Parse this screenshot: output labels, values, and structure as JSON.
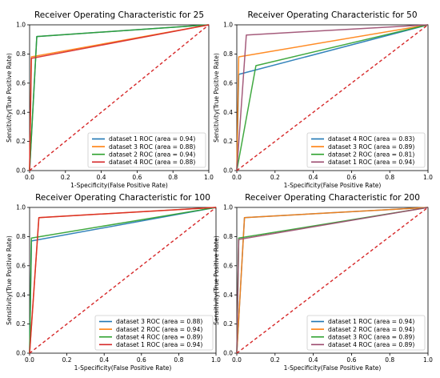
{
  "chart_data": [
    {
      "type": "line",
      "title": "Receiver Operating Characteristic for 25",
      "xlabel": "1-Specificity(False Positive Rate)",
      "ylabel": "Sensitivity(True Positive Rate)",
      "xlim": [
        0,
        1
      ],
      "ylim": [
        0,
        1
      ],
      "xticks": [
        "0.0",
        "0.2",
        "0.4",
        "0.6",
        "0.8",
        "1.0"
      ],
      "yticks": [
        "0.0",
        "0.2",
        "0.4",
        "0.6",
        "0.8",
        "1.0"
      ],
      "legend_position": "lower-right",
      "grid": false,
      "series": [
        {
          "name": "dataset 1 ROC (area = 0.94)",
          "color": "#1f77b4",
          "x": [
            0,
            0.04,
            1
          ],
          "y": [
            0,
            0.92,
            1
          ]
        },
        {
          "name": "dataset 3 ROC (area = 0.88)",
          "color": "#ff7f0e",
          "x": [
            0,
            0.01,
            1
          ],
          "y": [
            0,
            0.78,
            1
          ]
        },
        {
          "name": "dataset 2 ROC (area = 0.94)",
          "color": "#2ca02c",
          "x": [
            0,
            0.04,
            1
          ],
          "y": [
            0,
            0.92,
            1
          ]
        },
        {
          "name": "dataset 4 ROC (area = 0.88)",
          "color": "#d62728",
          "x": [
            0,
            0.01,
            1
          ],
          "y": [
            0,
            0.77,
            1
          ]
        }
      ],
      "chance_line": {
        "x": [
          0,
          1
        ],
        "y": [
          0,
          1
        ],
        "color": "#d62728",
        "style": "dashed"
      }
    },
    {
      "type": "line",
      "title": "Receiver Operating Characteristic for 50",
      "xlabel": "1-Specificity(False Positive Rate)",
      "ylabel": "Sensitivity(True Positive Rate)",
      "xlim": [
        0,
        1
      ],
      "ylim": [
        0,
        1
      ],
      "xticks": [
        "0.0",
        "0.2",
        "0.4",
        "0.6",
        "0.8",
        "1.0"
      ],
      "yticks": [
        "0.0",
        "0.2",
        "0.4",
        "0.6",
        "0.8",
        "1.0"
      ],
      "legend_position": "lower-right",
      "grid": false,
      "series": [
        {
          "name": "dataset 4 ROC (area = 0.83)",
          "color": "#1f77b4",
          "x": [
            0,
            0.01,
            1
          ],
          "y": [
            0,
            0.66,
            1
          ]
        },
        {
          "name": "dataset 3 ROC (area = 0.89)",
          "color": "#ff7f0e",
          "x": [
            0,
            0.01,
            1
          ],
          "y": [
            0,
            0.78,
            1
          ]
        },
        {
          "name": "dataset 2 ROC (area = 0.81)",
          "color": "#2ca02c",
          "x": [
            0,
            0.1,
            1
          ],
          "y": [
            0,
            0.72,
            1
          ]
        },
        {
          "name": "dataset 1 ROC (area = 0.94)",
          "color": "#9b4a6e",
          "x": [
            0,
            0.05,
            1
          ],
          "y": [
            0,
            0.93,
            1
          ]
        }
      ],
      "chance_line": {
        "x": [
          0,
          1
        ],
        "y": [
          0,
          1
        ],
        "color": "#d62728",
        "style": "dashed"
      }
    },
    {
      "type": "line",
      "title": "Receiver Operating Characteristic for 100",
      "xlabel": "1-Specificity(False Positive Rate)",
      "ylabel": "Sensitivity(True Positive Rate)",
      "xlim": [
        0,
        1
      ],
      "ylim": [
        0,
        1
      ],
      "xticks": [
        "0.0",
        "0.2",
        "0.4",
        "0.6",
        "0.8",
        "1.0"
      ],
      "yticks": [
        "0.0",
        "0.2",
        "0.4",
        "0.6",
        "0.8",
        "1.0"
      ],
      "legend_position": "lower-right",
      "grid": false,
      "series": [
        {
          "name": "dataset 3 ROC (area = 0.88)",
          "color": "#1f77b4",
          "x": [
            0,
            0.01,
            1
          ],
          "y": [
            0,
            0.77,
            1
          ]
        },
        {
          "name": "dataset 2 ROC (area = 0.94)",
          "color": "#ff7f0e",
          "x": [
            0,
            0.05,
            1
          ],
          "y": [
            0,
            0.93,
            1
          ]
        },
        {
          "name": "dataset 4 ROC (area = 0.89)",
          "color": "#2ca02c",
          "x": [
            0,
            0.01,
            1
          ],
          "y": [
            0,
            0.79,
            1
          ]
        },
        {
          "name": "dataset 1 ROC (area = 0.94)",
          "color": "#d62728",
          "x": [
            0,
            0.05,
            1
          ],
          "y": [
            0,
            0.93,
            1
          ]
        }
      ],
      "chance_line": {
        "x": [
          0,
          1
        ],
        "y": [
          0,
          1
        ],
        "color": "#d62728",
        "style": "dashed"
      }
    },
    {
      "type": "line",
      "title": "Receiver Operating Characteristic for 200",
      "xlabel": "1-Specificity(False Positive Rate)",
      "ylabel": "Sensitivity(True Positive Rate)",
      "xlim": [
        0,
        1
      ],
      "ylim": [
        0,
        1
      ],
      "xticks": [
        "0.0",
        "0.2",
        "0.4",
        "0.6",
        "0.8",
        "1.0"
      ],
      "yticks": [
        "0.0",
        "0.2",
        "0.4",
        "0.6",
        "0.8",
        "1.0"
      ],
      "legend_position": "lower-right",
      "grid": false,
      "series": [
        {
          "name": "dataset 1 ROC (area = 0.94)",
          "color": "#1f77b4",
          "x": [
            0,
            0.04,
            1
          ],
          "y": [
            0,
            0.93,
            1
          ]
        },
        {
          "name": "dataset 2 ROC (area = 0.94)",
          "color": "#ff7f0e",
          "x": [
            0,
            0.04,
            1
          ],
          "y": [
            0,
            0.93,
            1
          ]
        },
        {
          "name": "dataset 3 ROC (area = 0.89)",
          "color": "#2ca02c",
          "x": [
            0,
            0.01,
            1
          ],
          "y": [
            0,
            0.79,
            1
          ]
        },
        {
          "name": "dataset 4 ROC (area = 0.89)",
          "color": "#9b4a6e",
          "x": [
            0,
            0.01,
            1
          ],
          "y": [
            0,
            0.78,
            1
          ]
        }
      ],
      "chance_line": {
        "x": [
          0,
          1
        ],
        "y": [
          0,
          1
        ],
        "color": "#d62728",
        "style": "dashed"
      }
    }
  ]
}
